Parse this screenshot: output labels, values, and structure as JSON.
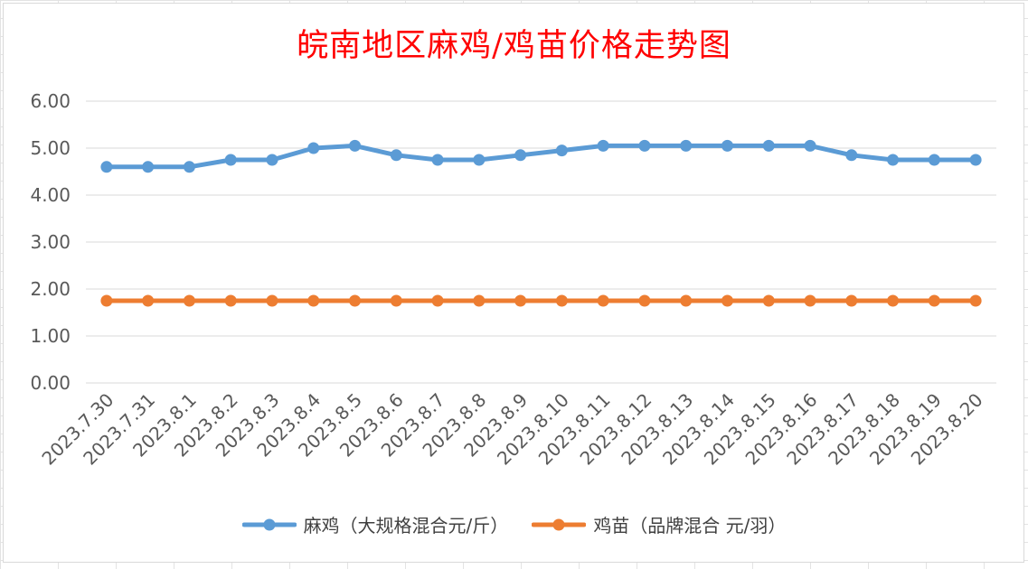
{
  "chart_data": {
    "type": "line",
    "title": "皖南地区麻鸡/鸡苗价格走势图",
    "categories": [
      "2023.7.30",
      "2023.7.31",
      "2023.8.1",
      "2023.8.2",
      "2023.8.3",
      "2023.8.4",
      "2023.8.5",
      "2023.8.6",
      "2023.8.7",
      "2023.8.8",
      "2023.8.9",
      "2023.8.10",
      "2023.8.11",
      "2023.8.12",
      "2023.8.13",
      "2023.8.14",
      "2023.8.15",
      "2023.8.16",
      "2023.8.17",
      "2023.8.18",
      "2023.8.19",
      "2023.8.20"
    ],
    "series": [
      {
        "name": "麻鸡（大规格混合元/斤）",
        "color": "#5b9bd5",
        "values": [
          4.6,
          4.6,
          4.6,
          4.75,
          4.75,
          5.0,
          5.05,
          4.85,
          4.75,
          4.75,
          4.85,
          4.95,
          5.05,
          5.05,
          5.05,
          5.05,
          5.05,
          5.05,
          4.85,
          4.75,
          4.75,
          4.75
        ]
      },
      {
        "name": "鸡苗（品牌混合 元/羽）",
        "color": "#ed7d31",
        "values": [
          1.75,
          1.75,
          1.75,
          1.75,
          1.75,
          1.75,
          1.75,
          1.75,
          1.75,
          1.75,
          1.75,
          1.75,
          1.75,
          1.75,
          1.75,
          1.75,
          1.75,
          1.75,
          1.75,
          1.75,
          1.75,
          1.75
        ]
      }
    ],
    "ylim": [
      0,
      6
    ],
    "yticks": [
      "0.00",
      "1.00",
      "2.00",
      "3.00",
      "4.00",
      "5.00",
      "6.00"
    ],
    "grid": true,
    "legend_position": "bottom"
  }
}
